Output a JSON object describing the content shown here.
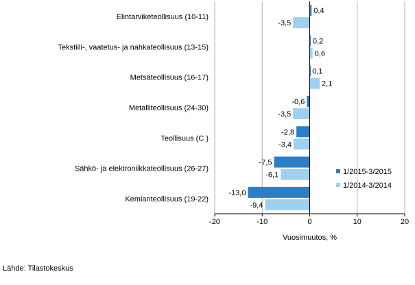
{
  "chart_data": {
    "type": "bar",
    "orientation": "horizontal",
    "categories": [
      "Elintarviketeollisuus (10-11)",
      "Tekstiili-, vaatetus- ja nahkateollisuus (13-15)",
      "Metsäteollisuus (16-17)",
      "Metalliteollisuus (24-30)",
      "Teollisuus (C )",
      "Sähkö- ja elektroniikkateollisuus (26-27)",
      "Kemianteollisuus (19-22)"
    ],
    "series": [
      {
        "name": "1/2015-3/2015",
        "color": "#2a7fc8",
        "values": [
          0.4,
          0.2,
          0.1,
          -0.6,
          -2.8,
          -7.5,
          -13.0
        ],
        "labels": [
          "0,4",
          "0,2",
          "0,1",
          "-0,6",
          "-2,8",
          "-7,5",
          "-13,0"
        ]
      },
      {
        "name": "1/2014-3/2014",
        "color": "#9fd0f0",
        "values": [
          -3.5,
          0.6,
          2.1,
          -3.5,
          -3.4,
          -6.1,
          -9.4
        ],
        "labels": [
          "-3,5",
          "0,6",
          "2,1",
          "-3,5",
          "-3,4",
          "-6,1",
          "-9,4"
        ]
      }
    ],
    "xlim": [
      -20,
      20
    ],
    "xticks": [
      -20,
      -10,
      0,
      10,
      20
    ],
    "xlabel": "Vuosimuutos, %",
    "gridlines": "vertical",
    "legend_position": "right"
  },
  "source": "Lähde: Tilastokeskus"
}
